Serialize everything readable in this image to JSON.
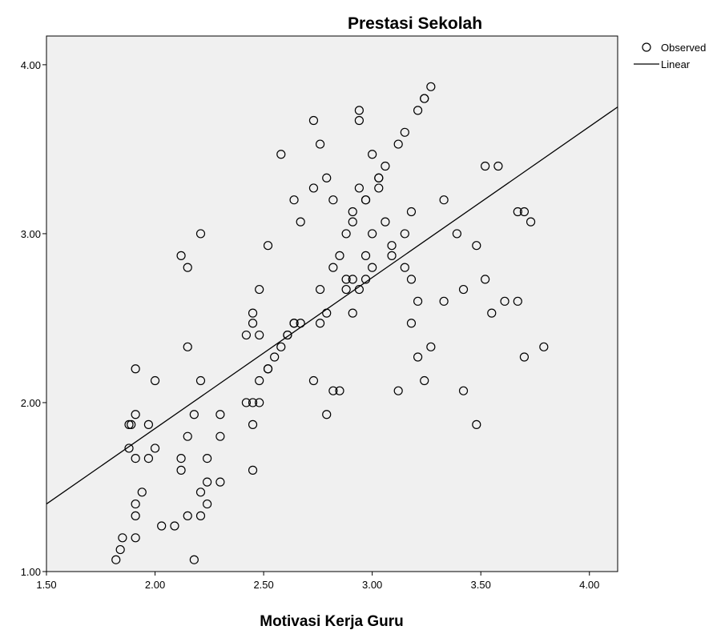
{
  "chart_data": {
    "type": "scatter",
    "title": "Prestasi Sekolah",
    "xlabel": "Motivasi Kerja Guru",
    "ylabel": "",
    "xlim": [
      1.5,
      4.13
    ],
    "ylim": [
      1.0,
      4.17
    ],
    "x_ticks": [
      "1.50",
      "2.00",
      "2.50",
      "3.00",
      "3.50",
      "4.00"
    ],
    "y_ticks": [
      "1.00",
      "2.00",
      "3.00",
      "4.00"
    ],
    "grid": false,
    "legend_position": "top-right",
    "colors": {
      "plot_background": "#f0f0f0",
      "marker": "#000000",
      "line": "#000000"
    },
    "series": [
      {
        "name": "Observed",
        "kind": "scatter",
        "points": [
          [
            1.82,
            1.07
          ],
          [
            1.84,
            1.13
          ],
          [
            1.85,
            1.2
          ],
          [
            1.91,
            1.2
          ],
          [
            1.91,
            1.33
          ],
          [
            1.91,
            1.4
          ],
          [
            1.94,
            1.47
          ],
          [
            1.88,
            1.73
          ],
          [
            1.88,
            1.87
          ],
          [
            1.89,
            1.87
          ],
          [
            1.91,
            1.93
          ],
          [
            1.97,
            1.87
          ],
          [
            1.91,
            1.67
          ],
          [
            1.97,
            1.67
          ],
          [
            2.0,
            1.73
          ],
          [
            1.91,
            2.2
          ],
          [
            2.0,
            2.13
          ],
          [
            2.03,
            1.27
          ],
          [
            2.09,
            1.27
          ],
          [
            2.12,
            1.6
          ],
          [
            2.12,
            1.67
          ],
          [
            2.15,
            1.33
          ],
          [
            2.15,
            1.8
          ],
          [
            2.18,
            1.93
          ],
          [
            2.21,
            1.47
          ],
          [
            2.21,
            1.33
          ],
          [
            2.24,
            1.4
          ],
          [
            2.24,
            1.53
          ],
          [
            2.24,
            1.67
          ],
          [
            2.3,
            1.53
          ],
          [
            2.3,
            1.8
          ],
          [
            2.3,
            1.93
          ],
          [
            2.18,
            1.07
          ],
          [
            2.15,
            2.33
          ],
          [
            2.21,
            2.13
          ],
          [
            2.12,
            2.87
          ],
          [
            2.15,
            2.8
          ],
          [
            2.21,
            3.0
          ],
          [
            2.42,
            2.0
          ],
          [
            2.42,
            2.4
          ],
          [
            2.45,
            2.0
          ],
          [
            2.45,
            1.87
          ],
          [
            2.45,
            1.6
          ],
          [
            2.45,
            2.47
          ],
          [
            2.45,
            2.53
          ],
          [
            2.48,
            2.0
          ],
          [
            2.48,
            2.13
          ],
          [
            2.48,
            2.4
          ],
          [
            2.48,
            2.67
          ],
          [
            2.52,
            2.2
          ],
          [
            2.52,
            2.2
          ],
          [
            2.52,
            2.93
          ],
          [
            2.55,
            2.27
          ],
          [
            2.58,
            2.33
          ],
          [
            2.61,
            2.4
          ],
          [
            2.61,
            2.4
          ],
          [
            2.64,
            2.47
          ],
          [
            2.64,
            2.47
          ],
          [
            2.67,
            2.47
          ],
          [
            2.58,
            3.47
          ],
          [
            2.64,
            3.2
          ],
          [
            2.67,
            3.07
          ],
          [
            2.73,
            3.27
          ],
          [
            2.73,
            3.67
          ],
          [
            2.76,
            3.53
          ],
          [
            2.79,
            3.33
          ],
          [
            2.82,
            3.2
          ],
          [
            2.76,
            2.67
          ],
          [
            2.76,
            2.47
          ],
          [
            2.79,
            2.53
          ],
          [
            2.82,
            2.8
          ],
          [
            2.85,
            2.87
          ],
          [
            2.88,
            2.73
          ],
          [
            2.88,
            2.67
          ],
          [
            2.88,
            3.0
          ],
          [
            2.91,
            3.07
          ],
          [
            2.91,
            3.13
          ],
          [
            2.91,
            2.53
          ],
          [
            2.91,
            2.73
          ],
          [
            2.94,
            2.67
          ],
          [
            2.94,
            3.27
          ],
          [
            2.94,
            3.67
          ],
          [
            2.94,
            3.73
          ],
          [
            2.97,
            2.73
          ],
          [
            2.97,
            2.87
          ],
          [
            2.97,
            3.2
          ],
          [
            2.97,
            3.2
          ],
          [
            3.0,
            3.47
          ],
          [
            3.0,
            3.0
          ],
          [
            3.0,
            2.8
          ],
          [
            3.03,
            3.33
          ],
          [
            3.03,
            3.33
          ],
          [
            3.03,
            3.27
          ],
          [
            3.06,
            3.4
          ],
          [
            3.06,
            3.07
          ],
          [
            3.09,
            2.93
          ],
          [
            3.09,
            2.87
          ],
          [
            3.12,
            3.53
          ],
          [
            3.15,
            3.6
          ],
          [
            3.15,
            3.0
          ],
          [
            3.15,
            2.8
          ],
          [
            3.18,
            2.73
          ],
          [
            3.18,
            3.13
          ],
          [
            3.18,
            2.47
          ],
          [
            3.21,
            2.6
          ],
          [
            3.21,
            2.27
          ],
          [
            3.21,
            3.73
          ],
          [
            3.24,
            3.8
          ],
          [
            3.24,
            3.8
          ],
          [
            3.27,
            3.87
          ],
          [
            3.24,
            2.13
          ],
          [
            3.27,
            2.33
          ],
          [
            3.12,
            2.07
          ],
          [
            2.73,
            2.13
          ],
          [
            2.82,
            2.07
          ],
          [
            2.85,
            2.07
          ],
          [
            2.79,
            1.93
          ],
          [
            3.33,
            3.2
          ],
          [
            3.33,
            2.6
          ],
          [
            3.39,
            3.0
          ],
          [
            3.42,
            2.67
          ],
          [
            3.42,
            2.07
          ],
          [
            3.48,
            2.93
          ],
          [
            3.48,
            1.87
          ],
          [
            3.52,
            3.4
          ],
          [
            3.52,
            2.73
          ],
          [
            3.55,
            2.53
          ],
          [
            3.58,
            3.4
          ],
          [
            3.61,
            2.6
          ],
          [
            3.67,
            2.6
          ],
          [
            3.67,
            3.13
          ],
          [
            3.7,
            3.13
          ],
          [
            3.73,
            3.07
          ],
          [
            3.7,
            2.27
          ],
          [
            3.79,
            2.33
          ]
        ]
      },
      {
        "name": "Linear",
        "kind": "line",
        "points": [
          [
            1.5,
            1.4
          ],
          [
            4.13,
            3.75
          ]
        ]
      }
    ]
  }
}
